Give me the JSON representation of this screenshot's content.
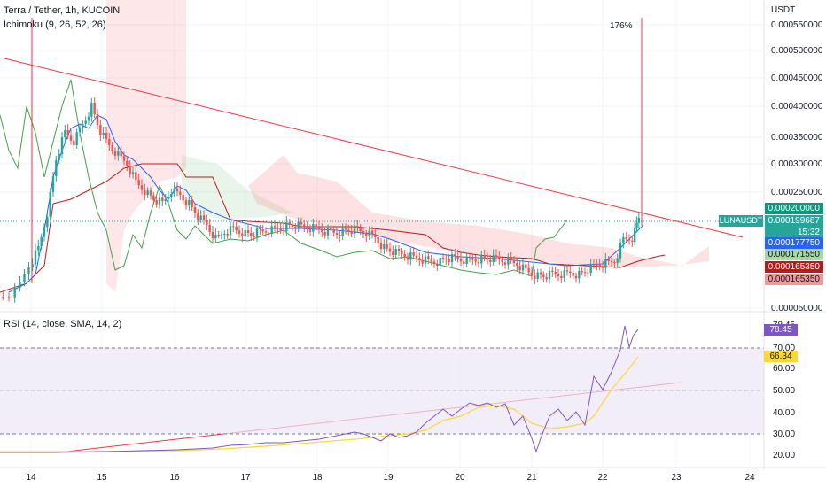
{
  "header": {
    "symbol": "Terra / Tether, 1h, KUCOIN",
    "indicator": "Ichimoku (9, 26, 52, 26)",
    "currency": "USDT"
  },
  "price_axis": {
    "labels": [
      "0.000550000",
      "0.000500000",
      "0.000450000",
      "0.000400000",
      "0.000350000",
      "0.000300000",
      "0.000250000",
      "0.000050000"
    ]
  },
  "price_tags": {
    "high": "0.000200000",
    "last": "0.000199687",
    "countdown": "15:32",
    "symbol_tag": "LUNAUSDT",
    "blue": "0.000177750",
    "green": "0.000171550",
    "red_dark": "0.000165350",
    "red_light": "0.000165350"
  },
  "annotation": "176%",
  "rsi": {
    "title": "RSI (14, close, SMA, 14, 2)",
    "axis_labels": [
      "70.00",
      "60.00",
      "50.00",
      "40.00",
      "30.00",
      "20.00"
    ],
    "value": "78.45",
    "sma_value": "66.34",
    "top_partial": "78.45"
  },
  "time_axis": {
    "labels": [
      "14",
      "15",
      "16",
      "17",
      "18",
      "19",
      "20",
      "21",
      "22",
      "23",
      "24"
    ]
  },
  "colors": {
    "up": "#26a69a",
    "down": "#ef5350",
    "tenkan": "#2962ff",
    "kijun": "#b71c1c",
    "chikou": "#43a047",
    "trendline": "#f23645",
    "rsi_line": "#7e57c2",
    "rsi_sma": "#fdd835",
    "rsi_band": "#ede7f6"
  }
}
